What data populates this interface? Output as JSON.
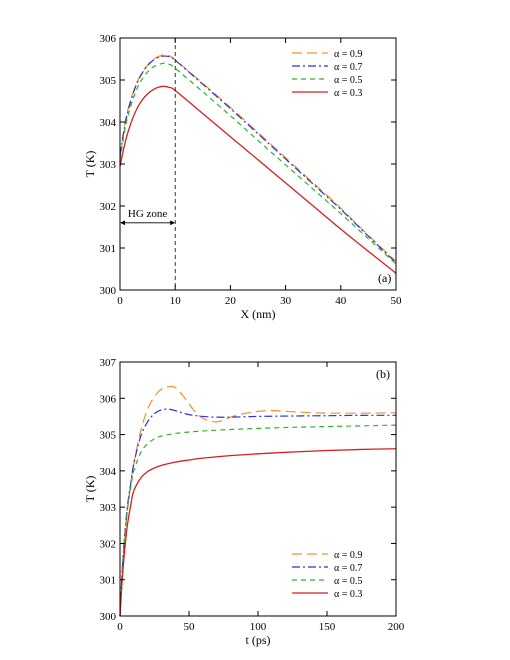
{
  "colors": {
    "alpha_0_9": "#f4922a",
    "alpha_0_7": "#3030d8",
    "alpha_0_5": "#30b030",
    "alpha_0_3": "#d42020",
    "axis": "#000000"
  },
  "chart_data": [
    {
      "type": "line",
      "panel_label": "(a)",
      "xlabel": "X (nm)",
      "ylabel": "T (K)",
      "xlim": [
        0,
        50
      ],
      "ylim": [
        300,
        306
      ],
      "xticks": [
        0,
        10,
        20,
        30,
        40,
        50
      ],
      "yticks": [
        300,
        301,
        302,
        303,
        304,
        305,
        306
      ],
      "legend_position": "top-right",
      "annotation": {
        "text": "HG zone",
        "x_start": 0,
        "x_end": 10,
        "y": 301.6,
        "boundary_x": 10
      },
      "series": [
        {
          "name": "α = 0.9",
          "style": "dash",
          "x": [
            0,
            1,
            2,
            3,
            4,
            5,
            6,
            7,
            8,
            9,
            10,
            15,
            20,
            25,
            30,
            35,
            40,
            45,
            50
          ],
          "values": [
            303.2,
            304.05,
            304.55,
            304.92,
            305.18,
            305.36,
            305.49,
            305.56,
            305.6,
            305.57,
            305.48,
            304.92,
            304.35,
            303.75,
            303.15,
            302.55,
            301.95,
            301.3,
            300.68
          ]
        },
        {
          "name": "α = 0.7",
          "style": "dashdot",
          "x": [
            0,
            1,
            2,
            3,
            4,
            5,
            6,
            7,
            8,
            9,
            10,
            15,
            20,
            25,
            30,
            35,
            40,
            45,
            50
          ],
          "values": [
            303.2,
            304.0,
            304.52,
            304.9,
            305.16,
            305.34,
            305.47,
            305.54,
            305.57,
            305.55,
            305.47,
            304.9,
            304.32,
            303.72,
            303.12,
            302.52,
            301.92,
            301.28,
            300.65
          ]
        },
        {
          "name": "α = 0.5",
          "style": "shortdash",
          "x": [
            0,
            1,
            2,
            3,
            4,
            5,
            6,
            7,
            8,
            9,
            10,
            15,
            20,
            25,
            30,
            35,
            40,
            45,
            50
          ],
          "values": [
            303.1,
            303.9,
            304.4,
            304.77,
            305.02,
            305.19,
            305.31,
            305.37,
            305.4,
            305.37,
            305.28,
            304.72,
            304.15,
            303.56,
            302.98,
            302.4,
            301.82,
            301.22,
            300.62
          ]
        },
        {
          "name": "α = 0.3",
          "style": "solid",
          "x": [
            0,
            1,
            2,
            3,
            4,
            5,
            6,
            7,
            8,
            9,
            10,
            15,
            20,
            25,
            30,
            35,
            40,
            45,
            50
          ],
          "values": [
            302.95,
            303.55,
            303.98,
            304.3,
            304.52,
            304.67,
            304.77,
            304.83,
            304.85,
            304.82,
            304.75,
            304.2,
            303.65,
            303.1,
            302.55,
            302.0,
            301.45,
            300.92,
            300.4
          ]
        }
      ]
    },
    {
      "type": "line",
      "panel_label": "(b)",
      "xlabel": "t (ps)",
      "ylabel": "T (K)",
      "xlim": [
        0,
        200
      ],
      "ylim": [
        300,
        307
      ],
      "xticks": [
        0,
        50,
        100,
        150,
        200
      ],
      "yticks": [
        300,
        301,
        302,
        303,
        304,
        305,
        306,
        307
      ],
      "legend_position": "bottom-right",
      "series": [
        {
          "name": "α = 0.9",
          "style": "dash",
          "x": [
            0,
            2,
            5,
            8,
            10,
            15,
            20,
            25,
            30,
            35,
            40,
            45,
            50,
            55,
            60,
            65,
            70,
            75,
            80,
            90,
            100,
            110,
            120,
            130,
            140,
            150,
            175,
            200
          ],
          "values": [
            300,
            301.4,
            302.8,
            303.7,
            304.2,
            305.1,
            305.7,
            306.05,
            306.25,
            306.32,
            306.3,
            306.1,
            305.85,
            305.6,
            305.45,
            305.38,
            305.35,
            305.4,
            305.48,
            305.58,
            305.64,
            305.66,
            305.64,
            305.62,
            305.6,
            305.59,
            305.59,
            305.6
          ]
        },
        {
          "name": "α = 0.7",
          "style": "dashdot",
          "x": [
            0,
            2,
            5,
            8,
            10,
            15,
            20,
            25,
            30,
            35,
            40,
            45,
            50,
            60,
            70,
            80,
            90,
            100,
            120,
            150,
            175,
            200
          ],
          "values": [
            300,
            301.5,
            302.9,
            303.7,
            304.2,
            304.95,
            305.35,
            305.58,
            305.68,
            305.7,
            305.66,
            305.6,
            305.55,
            305.5,
            305.48,
            305.48,
            305.49,
            305.5,
            305.51,
            305.52,
            305.53,
            305.53
          ]
        },
        {
          "name": "α = 0.5",
          "style": "shortdash",
          "x": [
            0,
            2,
            5,
            8,
            10,
            15,
            20,
            25,
            30,
            40,
            50,
            60,
            80,
            100,
            125,
            150,
            175,
            200
          ],
          "values": [
            300,
            301.5,
            302.8,
            303.6,
            304.0,
            304.5,
            304.75,
            304.88,
            304.96,
            305.03,
            305.07,
            305.1,
            305.14,
            305.17,
            305.2,
            305.22,
            305.24,
            305.26
          ]
        },
        {
          "name": "α = 0.3",
          "style": "solid",
          "x": [
            0,
            2,
            5,
            8,
            10,
            15,
            20,
            25,
            30,
            40,
            50,
            60,
            80,
            100,
            125,
            150,
            175,
            200
          ],
          "values": [
            300,
            301.2,
            302.4,
            303.1,
            303.45,
            303.8,
            303.98,
            304.08,
            304.15,
            304.24,
            304.3,
            304.35,
            304.42,
            304.47,
            304.52,
            304.56,
            304.59,
            304.61
          ]
        }
      ]
    }
  ]
}
